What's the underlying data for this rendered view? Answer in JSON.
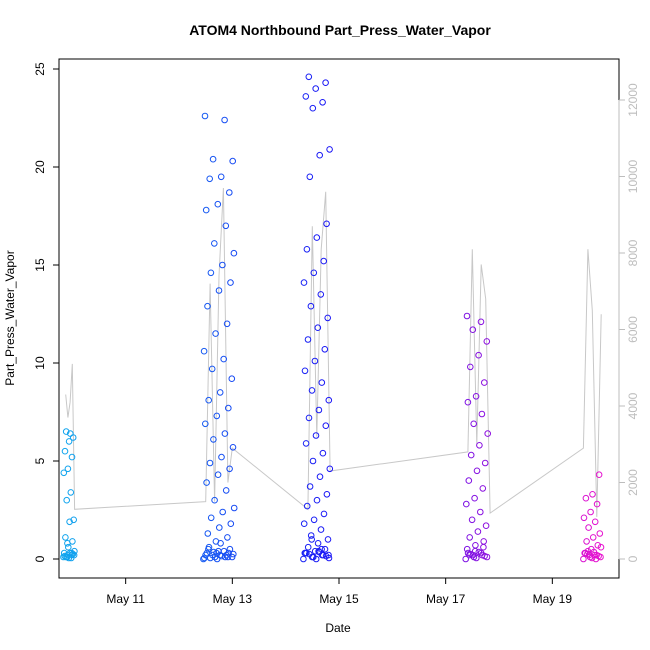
{
  "chart_data": {
    "type": "scatter",
    "title": "ATOM4 Northbound Part_Press_Water_Vapor",
    "xlabel": "Date",
    "ylabel": "Part_Press_Water_Vapor",
    "ylim": [
      0,
      25
    ],
    "y_ticks": [
      "0",
      "5",
      "10",
      "15",
      "20",
      "25"
    ],
    "y2_ticks": [
      "0",
      "2000",
      "4000",
      "6000",
      "8000",
      "10000",
      "12000"
    ],
    "y2_range": [
      0,
      12000
    ],
    "x_ticks": [
      {
        "label": "May 11",
        "date": "2023-05-11"
      },
      {
        "label": "May 13",
        "date": "2023-05-13"
      },
      {
        "label": "May 15",
        "date": "2023-05-15"
      },
      {
        "label": "May 17",
        "date": "2023-05-17"
      },
      {
        "label": "May 19",
        "date": "2023-05-19"
      }
    ],
    "xlim": [
      "2023-05-09T18:00",
      "2023-05-20T06:00"
    ],
    "grid": false,
    "point_color_start": "#10a8ee",
    "point_color_mid": "#1a10f6",
    "point_color_end": "#f512cc",
    "line_color": "#c8c8c8",
    "groups": [
      {
        "center": "2023-05-09T22:30",
        "width_h": 5,
        "y": [
          0.1,
          0.2,
          0.3,
          0.15,
          0.05,
          0.25,
          0.1,
          0.3,
          0.2,
          0.1,
          0.05,
          0.3,
          0.6,
          0.9,
          1.1,
          1.9,
          2.0,
          3.0,
          3.4,
          4.4,
          4.6,
          5.2,
          5.5,
          6.0,
          6.2,
          6.5,
          6.4,
          0.4,
          0.8,
          0.2
        ]
      },
      {
        "center": "2023-05-12T18:00",
        "width_h": 14,
        "y": [
          0.0,
          0.1,
          0.2,
          0.3,
          0.4,
          0.5,
          0.05,
          0.15,
          0.25,
          0.35,
          0.1,
          0.2,
          0.0,
          0.3,
          0.6,
          0.8,
          0.1,
          0.2,
          0.4,
          0.05,
          0.9,
          1.1,
          1.3,
          1.6,
          1.8,
          2.1,
          2.4,
          2.6,
          3.0,
          3.5,
          3.9,
          4.3,
          4.6,
          4.9,
          5.2,
          5.7,
          6.1,
          6.4,
          6.9,
          7.3,
          7.7,
          8.1,
          8.5,
          9.2,
          9.7,
          10.2,
          10.6,
          11.5,
          12.0,
          12.9,
          13.7,
          14.1,
          14.6,
          15.0,
          15.6,
          16.1,
          17.0,
          17.8,
          18.1,
          18.7,
          19.4,
          19.5,
          20.3,
          20.4,
          22.4,
          22.6,
          0.3,
          0.1,
          0.5,
          0.2
        ]
      },
      {
        "center": "2023-05-14T14:00",
        "width_h": 12,
        "y": [
          0.0,
          0.1,
          0.2,
          0.3,
          0.0,
          0.15,
          0.25,
          0.35,
          0.05,
          0.1,
          0.2,
          0.3,
          0.4,
          0.5,
          0.6,
          0.8,
          1.0,
          1.2,
          1.5,
          1.8,
          2.0,
          2.3,
          2.7,
          3.0,
          3.3,
          3.7,
          4.2,
          4.6,
          5.0,
          5.4,
          5.9,
          6.3,
          6.8,
          7.2,
          7.6,
          8.1,
          8.6,
          9.0,
          9.6,
          10.1,
          10.7,
          11.2,
          11.8,
          12.3,
          12.9,
          13.5,
          14.1,
          14.6,
          15.2,
          15.8,
          16.4,
          17.1,
          19.5,
          20.6,
          20.9,
          23.0,
          23.3,
          23.6,
          24.0,
          24.3,
          24.6,
          0.4,
          0.2,
          1.0,
          0.5,
          0.3
        ]
      },
      {
        "center": "2023-05-17T14:00",
        "width_h": 10,
        "y": [
          0.0,
          0.1,
          0.2,
          0.3,
          0.05,
          0.15,
          0.25,
          0.35,
          0.1,
          0.2,
          0.3,
          0.5,
          0.7,
          0.9,
          1.1,
          1.4,
          1.7,
          2.0,
          2.4,
          2.8,
          3.1,
          3.6,
          4.0,
          4.5,
          4.9,
          5.3,
          5.8,
          6.4,
          6.9,
          7.4,
          8.0,
          8.3,
          9.0,
          9.8,
          10.4,
          11.1,
          11.7,
          12.1,
          12.4,
          0.4,
          0.6,
          0.2
        ]
      },
      {
        "center": "2023-05-19T18:00",
        "width_h": 8,
        "y": [
          0.0,
          0.1,
          0.2,
          0.3,
          0.05,
          0.15,
          0.25,
          0.35,
          0.1,
          0.2,
          0.0,
          0.3,
          0.5,
          0.7,
          0.9,
          1.1,
          1.3,
          1.6,
          1.9,
          2.1,
          2.4,
          2.8,
          3.1,
          3.3,
          4.3,
          0.4,
          0.2,
          0.6
        ]
      }
    ],
    "line_segments": [
      {
        "date": "2023-05-09T21:00",
        "y2": 4300
      },
      {
        "date": "2023-05-09T22:00",
        "y2": 3700
      },
      {
        "date": "2023-05-09T23:00",
        "y2": 4100
      },
      {
        "date": "2023-05-10T00:00",
        "y2": 5100
      },
      {
        "date": "2023-05-10T01:00",
        "y2": 1300
      },
      {
        "date": "2023-05-12T12:00",
        "y2": 1500
      },
      {
        "date": "2023-05-12T14:00",
        "y2": 7200
      },
      {
        "date": "2023-05-12T16:00",
        "y2": 1500
      },
      {
        "date": "2023-05-12T18:00",
        "y2": 7400
      },
      {
        "date": "2023-05-12T20:00",
        "y2": 9700
      },
      {
        "date": "2023-05-12T22:00",
        "y2": 2000
      },
      {
        "date": "2023-05-13T00:00",
        "y2": 2900
      },
      {
        "date": "2023-05-14T10:00",
        "y2": 1300
      },
      {
        "date": "2023-05-14T12:00",
        "y2": 8700
      },
      {
        "date": "2023-05-14T14:00",
        "y2": 3200
      },
      {
        "date": "2023-05-14T16:00",
        "y2": 8100
      },
      {
        "date": "2023-05-14T18:00",
        "y2": 9600
      },
      {
        "date": "2023-05-14T20:00",
        "y2": 2300
      },
      {
        "date": "2023-05-17T10:00",
        "y2": 2800
      },
      {
        "date": "2023-05-17T12:00",
        "y2": 8100
      },
      {
        "date": "2023-05-17T14:00",
        "y2": 3000
      },
      {
        "date": "2023-05-17T16:00",
        "y2": 7700
      },
      {
        "date": "2023-05-17T18:00",
        "y2": 6800
      },
      {
        "date": "2023-05-17T20:00",
        "y2": 1200
      },
      {
        "date": "2023-05-19T14:00",
        "y2": 2900
      },
      {
        "date": "2023-05-19T16:00",
        "y2": 8100
      },
      {
        "date": "2023-05-19T18:00",
        "y2": 6500
      },
      {
        "date": "2023-05-19T20:00",
        "y2": 1100
      },
      {
        "date": "2023-05-19T22:00",
        "y2": 6400
      }
    ]
  }
}
